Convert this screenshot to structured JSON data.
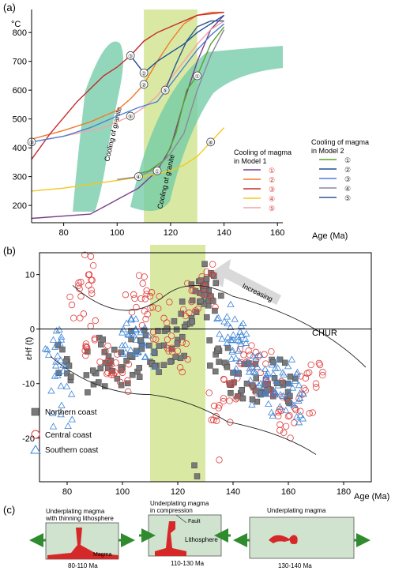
{
  "colors": {
    "green_band": "#d9e9a4",
    "cooling_fill": "#6ec9a5",
    "red": "#e03a3a",
    "blue": "#3a82d6",
    "gray_marker": "#7a7a7a"
  },
  "panel_a": {
    "label": "(a)",
    "ylabel": "°C",
    "xlabel": "Age (Ma)",
    "x_ticks": [
      "80",
      "100",
      "120",
      "140",
      "160"
    ],
    "y_ticks": [
      "200",
      "300",
      "400",
      "500",
      "600",
      "700",
      "800"
    ],
    "cooling_label_1": "Cooling of granite",
    "cooling_label_2": "Cooling of granite",
    "legend_title_1": "Cooling of magma",
    "legend_title_1b": "in Model 1",
    "legend_title_2": "Cooling of magma",
    "legend_title_2b": "in Model 2",
    "legend_numbers": [
      "①",
      "②",
      "③",
      "④",
      "⑤"
    ]
  },
  "panel_b": {
    "label": "(b)",
    "ylabel": "εHf (t)",
    "xlabel": "Age (Ma)",
    "x_ticks": [
      "80",
      "100",
      "120",
      "140",
      "160",
      "180"
    ],
    "y_ticks": [
      "10",
      "0",
      "-10",
      "-20"
    ],
    "chur_label": "CHUR",
    "arrow_label": "Increasing",
    "legend": [
      {
        "name": "Northern coast",
        "marker": "square"
      },
      {
        "name": "Central coast",
        "marker": "circle"
      },
      {
        "name": "Southern coast",
        "marker": "triangle"
      }
    ]
  },
  "panel_c": {
    "label": "(c)",
    "box1_title_1": "Underplating magma",
    "box1_title_2": "with thinning lithosphere",
    "box1_magma": "Magma",
    "box1_age": "80-110 Ma",
    "box2_title_1": "Underplating magma",
    "box2_title_2": "in compression",
    "box2_fault": "Fault",
    "box2_litho": "Lithosphere",
    "box2_age": "110-130 Ma",
    "box3_title": "Underplating magma",
    "box3_age": "130-140 Ma"
  },
  "chart_data": [
    {
      "type": "line",
      "title": "",
      "xlabel": "Age (Ma)",
      "ylabel": "°C",
      "xlim": [
        68,
        162
      ],
      "ylim": [
        140,
        880
      ],
      "highlight_band": [
        110,
        130
      ],
      "series": [
        {
          "name": "①",
          "color": "#7b3f8c",
          "x": [
            68,
            90,
            100,
            108,
            115,
            120,
            125,
            130,
            135,
            140
          ],
          "y": [
            155,
            170,
            220,
            260,
            320,
            400,
            560,
            700,
            810,
            860
          ]
        },
        {
          "name": "②",
          "color": "#f07a2b",
          "x": [
            68,
            80,
            90,
            100,
            105,
            110,
            115,
            120,
            125,
            130,
            135,
            140
          ],
          "y": [
            430,
            460,
            490,
            530,
            570,
            620,
            700,
            770,
            830,
            860,
            870,
            870
          ]
        },
        {
          "name": "③",
          "color": "#c62a2a",
          "x": [
            68,
            75,
            85,
            95,
            100,
            105,
            110,
            115,
            120,
            125,
            130,
            135,
            140
          ],
          "y": [
            360,
            450,
            560,
            650,
            680,
            720,
            770,
            800,
            820,
            840,
            860,
            865,
            870
          ]
        },
        {
          "name": "④",
          "color": "#f2c81e",
          "x": [
            68,
            80,
            95,
            110,
            120,
            125,
            130,
            135,
            140
          ],
          "y": [
            250,
            260,
            280,
            300,
            320,
            340,
            370,
            420,
            470
          ]
        },
        {
          "name": "⑤",
          "color": "#f4a3a3",
          "x": [
            68,
            80,
            95,
            105,
            110,
            115,
            120,
            125,
            130,
            135,
            140
          ],
          "y": [
            420,
            440,
            470,
            510,
            540,
            580,
            640,
            700,
            760,
            810,
            840
          ]
        },
        {
          "name": "①",
          "color": "#5aa02c",
          "x": [
            108,
            112,
            118,
            122,
            126,
            130,
            135,
            140
          ],
          "y": [
            310,
            320,
            360,
            450,
            600,
            650,
            760,
            820
          ]
        },
        {
          "name": "②",
          "color": "#1f4e9c",
          "x": [
            105,
            110,
            115,
            120,
            125,
            130,
            135,
            140
          ],
          "y": [
            720,
            660,
            700,
            730,
            760,
            800,
            830,
            860
          ]
        },
        {
          "name": "③",
          "color": "#4f7fd4",
          "x": [
            68,
            80,
            90,
            100,
            108,
            115,
            120,
            125,
            130,
            135,
            140
          ],
          "y": [
            420,
            440,
            470,
            510,
            540,
            560,
            620,
            680,
            740,
            790,
            830
          ]
        },
        {
          "name": "④",
          "color": "#8a8a9a",
          "x": [
            100,
            108,
            115,
            120,
            125,
            130,
            135,
            140
          ],
          "y": [
            290,
            300,
            330,
            380,
            450,
            600,
            720,
            810
          ]
        },
        {
          "name": "⑤",
          "color": "#2f5a8a",
          "x": [
            118,
            122,
            126,
            130,
            135,
            140
          ],
          "y": [
            600,
            690,
            770,
            820,
            840,
            840
          ]
        }
      ]
    },
    {
      "type": "scatter",
      "title": "",
      "xlabel": "Age (Ma)",
      "ylabel": "εHf (t)",
      "xlim": [
        70,
        190
      ],
      "ylim": [
        -28,
        14
      ],
      "highlight_band": [
        110,
        130
      ],
      "reference_line": {
        "name": "CHUR",
        "y": 0
      },
      "series": [
        {
          "name": "Northern coast",
          "marker": "square",
          "color": "#7a7a7a",
          "x": [
            80,
            90,
            95,
            100,
            105,
            110,
            115,
            120,
            125,
            128,
            130,
            132,
            135,
            140,
            145,
            150,
            155,
            160,
            126,
            127
          ],
          "y": [
            -6,
            -8,
            -5,
            -7,
            -4,
            -6,
            -3,
            -2,
            2,
            5,
            8,
            6,
            -4,
            -8,
            -10,
            -12,
            -9,
            -10,
            -25,
            -27
          ]
        },
        {
          "name": "Central coast",
          "marker": "circle",
          "color": "#e03a3a",
          "x": [
            85,
            88,
            90,
            95,
            100,
            105,
            110,
            115,
            120,
            125,
            130,
            135,
            140,
            145,
            150,
            155,
            160,
            165,
            170,
            135
          ],
          "y": [
            6,
            10,
            -2,
            -6,
            -8,
            4,
            6,
            2,
            -4,
            5,
            8,
            -14,
            -10,
            -6,
            -8,
            -12,
            -16,
            -12,
            -10,
            -24
          ]
        },
        {
          "name": "Southern coast",
          "marker": "triangle",
          "color": "#3a82d6",
          "x": [
            75,
            76,
            78,
            102,
            105,
            108,
            138,
            140,
            142,
            145,
            148,
            150,
            155,
            158,
            160,
            162
          ],
          "y": [
            -2,
            -6,
            -14,
            -1,
            -2,
            -3,
            1,
            -2,
            -4,
            -6,
            -8,
            -10,
            -12,
            -8,
            -10,
            -14
          ]
        }
      ]
    }
  ]
}
